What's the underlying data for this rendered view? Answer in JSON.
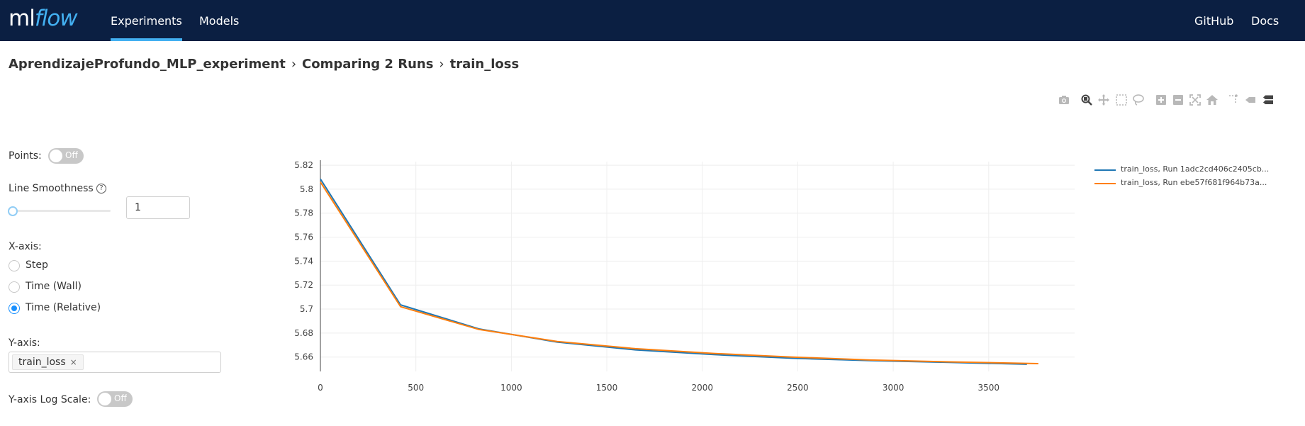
{
  "header": {
    "logo_ml": "ml",
    "logo_flow": "flow",
    "nav": [
      {
        "label": "Experiments",
        "active": true
      },
      {
        "label": "Models",
        "active": false
      }
    ],
    "right_links": [
      {
        "label": "GitHub"
      },
      {
        "label": "Docs"
      }
    ],
    "bg_color": "#0b1f42",
    "accent_color": "#43b0f1"
  },
  "breadcrumb": {
    "items": [
      "AprendizajeProfundo_MLP_experiment",
      "Comparing 2 Runs",
      "train_loss"
    ],
    "separator": "›"
  },
  "toolbar_icons": [
    "camera-icon",
    "zoom-icon",
    "pan-icon",
    "box-select-icon",
    "lasso-select-icon",
    "zoom-in-icon",
    "zoom-out-icon",
    "autoscale-icon",
    "reset-axes-icon",
    "spike-lines-icon",
    "hover-closest-icon",
    "hover-compare-icon"
  ],
  "controls": {
    "points_label": "Points:",
    "points_toggle": "Off",
    "smoothness_label": "Line Smoothness",
    "smoothness_value": "1",
    "smoothness_level": 0,
    "xaxis_label": "X-axis:",
    "xaxis_options": [
      {
        "label": "Step",
        "checked": false
      },
      {
        "label": "Time (Wall)",
        "checked": false
      },
      {
        "label": "Time (Relative)",
        "checked": true
      }
    ],
    "yaxis_label": "Y-axis:",
    "yaxis_tag": "train_loss",
    "yaxis_tag_close": "×",
    "logscale_label": "Y-axis Log Scale:",
    "logscale_toggle": "Off"
  },
  "chart_data": {
    "type": "line",
    "title": "",
    "xlabel": "",
    "ylabel": "",
    "xlim": [
      0,
      3950
    ],
    "ylim": [
      5.648,
      5.823
    ],
    "x_ticks": [
      0,
      500,
      1000,
      1500,
      2000,
      2500,
      3000,
      3500
    ],
    "y_ticks": [
      5.66,
      5.68,
      5.7,
      5.72,
      5.74,
      5.76,
      5.78,
      5.8,
      5.82
    ],
    "x_tick_labels": [
      "0",
      "500",
      "1000",
      "1500",
      "2000",
      "2500",
      "3000",
      "3500"
    ],
    "y_tick_labels": [
      "5.66",
      "5.68",
      "5.7",
      "5.72",
      "5.74",
      "5.76",
      "5.78",
      "5.8",
      "5.82"
    ],
    "grid": true,
    "legend_position": "top-right",
    "series": [
      {
        "name": "train_loss, Run 1adc2cd406c2405cb...",
        "color": "#1f77b4",
        "x": [
          0,
          420,
          830,
          1240,
          1650,
          2060,
          2470,
          2880,
          3290,
          3700
        ],
        "y": [
          5.8085,
          5.7035,
          5.6835,
          5.6725,
          5.666,
          5.662,
          5.659,
          5.657,
          5.6555,
          5.654
        ]
      },
      {
        "name": "train_loss, Run ebe57f681f964b73a...",
        "color": "#ff7f0e",
        "x": [
          0,
          420,
          830,
          1240,
          1650,
          2060,
          2470,
          2880,
          3290,
          3760
        ],
        "y": [
          5.806,
          5.702,
          5.683,
          5.673,
          5.667,
          5.663,
          5.66,
          5.6575,
          5.656,
          5.6545
        ]
      }
    ]
  }
}
